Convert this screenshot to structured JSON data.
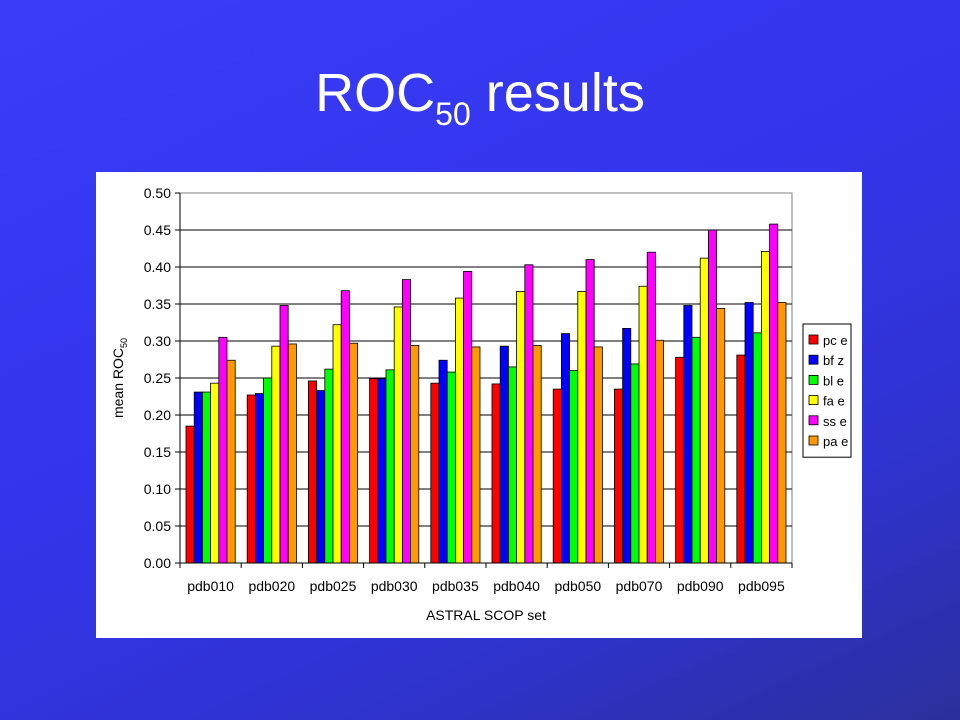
{
  "slide": {
    "title_main": "ROC",
    "title_subscript": "50",
    "title_rest": " results"
  },
  "colors": {
    "background": "#3434ec",
    "title_text": "#ffffff"
  },
  "chart_data": {
    "type": "bar",
    "xlabel": "ASTRAL SCOP set",
    "ylabel": "mean ROC",
    "ylabel_subscript": "50",
    "ylim": [
      0,
      0.5
    ],
    "yticks": [
      "0.00",
      "0.05",
      "0.10",
      "0.15",
      "0.20",
      "0.25",
      "0.30",
      "0.35",
      "0.40",
      "0.45",
      "0.50"
    ],
    "grid": true,
    "legend_position": "right",
    "categories": [
      "pdb010",
      "pdb020",
      "pdb025",
      "pdb030",
      "pdb035",
      "pdb040",
      "pdb050",
      "pdb070",
      "pdb090",
      "pdb095"
    ],
    "series": [
      {
        "name": "pc e",
        "color": "#ff0000",
        "values": [
          0.185,
          0.227,
          0.246,
          0.249,
          0.243,
          0.242,
          0.235,
          0.235,
          0.278,
          0.281
        ]
      },
      {
        "name": "bf z",
        "color": "#0000ff",
        "values": [
          0.231,
          0.229,
          0.233,
          0.249,
          0.274,
          0.293,
          0.31,
          0.317,
          0.348,
          0.352
        ]
      },
      {
        "name": "bl e",
        "color": "#00ff00",
        "values": [
          0.231,
          0.25,
          0.262,
          0.261,
          0.258,
          0.265,
          0.26,
          0.269,
          0.305,
          0.311
        ]
      },
      {
        "name": "fa e",
        "color": "#ffff00",
        "values": [
          0.243,
          0.293,
          0.322,
          0.346,
          0.358,
          0.367,
          0.367,
          0.374,
          0.412,
          0.421
        ]
      },
      {
        "name": "ss e",
        "color": "#ff00ff",
        "values": [
          0.305,
          0.348,
          0.368,
          0.383,
          0.394,
          0.403,
          0.41,
          0.42,
          0.45,
          0.458
        ]
      },
      {
        "name": "pa e",
        "color": "#ff9900",
        "values": [
          0.274,
          0.296,
          0.297,
          0.294,
          0.292,
          0.294,
          0.292,
          0.301,
          0.344,
          0.352
        ]
      }
    ]
  }
}
